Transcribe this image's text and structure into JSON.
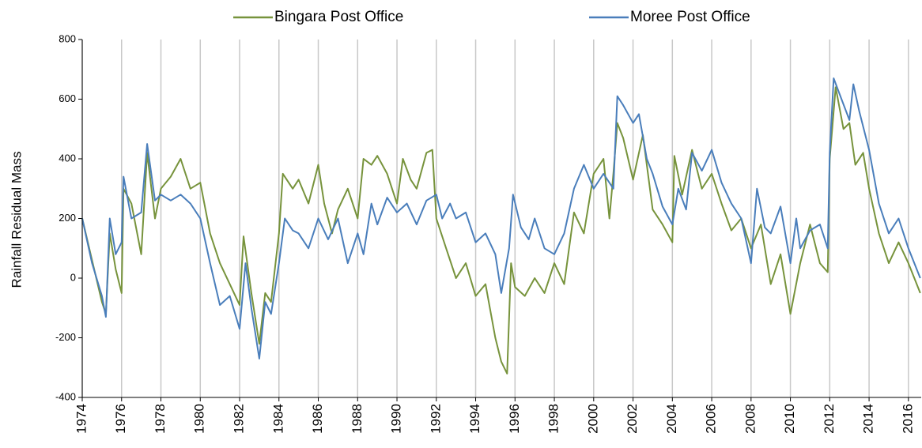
{
  "chart_data": {
    "type": "line",
    "y_label": "Rainfall Residual  Mass",
    "xlim": [
      1974,
      2016.65
    ],
    "xticks": [
      1974,
      1976,
      1978,
      1980,
      1982,
      1984,
      1986,
      1988,
      1990,
      1992,
      1994,
      1996,
      1998,
      2000,
      2002,
      2004,
      2006,
      2008,
      2010,
      2012,
      2014,
      2016
    ],
    "ylim": [
      -400,
      800
    ],
    "yticks": [
      -400,
      -200,
      0,
      200,
      400,
      600,
      800
    ],
    "grid": true,
    "legend": "top",
    "series": [
      {
        "name": "Bingara Post Office",
        "color": "#77933c",
        "x": [
          1974.0,
          1974.5,
          1975.0,
          1975.2,
          1975.4,
          1975.7,
          1976.0,
          1976.1,
          1976.5,
          1977.0,
          1977.3,
          1977.7,
          1978.0,
          1978.5,
          1979.0,
          1979.5,
          1980.0,
          1980.5,
          1981.0,
          1981.5,
          1982.0,
          1982.2,
          1982.6,
          1983.0,
          1983.3,
          1983.6,
          1984.0,
          1984.2,
          1984.7,
          1985.0,
          1985.5,
          1986.0,
          1986.3,
          1986.7,
          1987.0,
          1987.5,
          1988.0,
          1988.3,
          1988.7,
          1989.0,
          1989.5,
          1990.0,
          1990.3,
          1990.7,
          1991.0,
          1991.5,
          1991.8,
          1992.0,
          1992.5,
          1993.0,
          1993.5,
          1994.0,
          1994.5,
          1995.0,
          1995.3,
          1995.6,
          1995.8,
          1996.0,
          1996.5,
          1997.0,
          1997.5,
          1998.0,
          1998.5,
          1999.0,
          1999.5,
          2000.0,
          2000.5,
          2000.8,
          2001.0,
          2001.2,
          2001.5,
          2002.0,
          2002.5,
          2003.0,
          2003.5,
          2004.0,
          2004.1,
          2004.5,
          2005.0,
          2005.5,
          2006.0,
          2006.5,
          2007.0,
          2007.5,
          2008.0,
          2008.5,
          2009.0,
          2009.5,
          2010.0,
          2010.5,
          2011.0,
          2011.5,
          2011.9,
          2012.0,
          2012.3,
          2012.7,
          2013.0,
          2013.3,
          2013.7,
          2014.0,
          2014.5,
          2015.0,
          2015.5,
          2016.0,
          2016.6
        ],
        "values": [
          200,
          60,
          -80,
          -120,
          150,
          30,
          -50,
          300,
          250,
          80,
          420,
          200,
          300,
          340,
          400,
          300,
          320,
          150,
          50,
          -20,
          -90,
          140,
          -50,
          -220,
          -50,
          -80,
          150,
          350,
          300,
          330,
          250,
          380,
          250,
          150,
          230,
          300,
          200,
          400,
          380,
          410,
          350,
          250,
          400,
          330,
          300,
          420,
          430,
          200,
          100,
          0,
          50,
          -60,
          -20,
          -200,
          -280,
          -320,
          50,
          -30,
          -60,
          0,
          -50,
          50,
          -20,
          220,
          150,
          350,
          400,
          200,
          350,
          520,
          470,
          330,
          480,
          230,
          180,
          120,
          410,
          280,
          430,
          300,
          350,
          250,
          160,
          200,
          100,
          180,
          -20,
          80,
          -120,
          50,
          180,
          50,
          20,
          400,
          640,
          500,
          520,
          380,
          420,
          300,
          150,
          50,
          120,
          50,
          -50
        ]
      },
      {
        "name": "Moree Post Office",
        "color": "#4a7ebb",
        "x": [
          1974.0,
          1974.5,
          1975.0,
          1975.2,
          1975.4,
          1975.7,
          1976.0,
          1976.1,
          1976.5,
          1977.0,
          1977.3,
          1977.7,
          1978.0,
          1978.5,
          1979.0,
          1979.5,
          1980.0,
          1980.5,
          1981.0,
          1981.5,
          1982.0,
          1982.3,
          1982.6,
          1983.0,
          1983.3,
          1983.6,
          1984.0,
          1984.3,
          1984.7,
          1985.0,
          1985.5,
          1986.0,
          1986.5,
          1987.0,
          1987.5,
          1988.0,
          1988.3,
          1988.7,
          1989.0,
          1989.5,
          1990.0,
          1990.5,
          1991.0,
          1991.5,
          1992.0,
          1992.3,
          1992.7,
          1993.0,
          1993.5,
          1994.0,
          1994.5,
          1995.0,
          1995.3,
          1995.7,
          1995.9,
          1996.3,
          1996.7,
          1997.0,
          1997.5,
          1998.0,
          1998.5,
          1999.0,
          1999.5,
          2000.0,
          2000.5,
          2001.0,
          2001.2,
          2001.5,
          2002.0,
          2002.3,
          2002.7,
          2003.0,
          2003.5,
          2004.0,
          2004.3,
          2004.7,
          2005.0,
          2005.5,
          2006.0,
          2006.5,
          2007.0,
          2007.5,
          2008.0,
          2008.3,
          2008.7,
          2009.0,
          2009.5,
          2010.0,
          2010.3,
          2010.5,
          2011.0,
          2011.5,
          2011.9,
          2012.0,
          2012.2,
          2012.6,
          2013.0,
          2013.2,
          2013.5,
          2014.0,
          2014.5,
          2015.0,
          2015.5,
          2016.0,
          2016.6
        ],
        "values": [
          200,
          50,
          -60,
          -130,
          200,
          80,
          120,
          340,
          200,
          220,
          450,
          260,
          280,
          260,
          280,
          250,
          200,
          50,
          -90,
          -60,
          -170,
          50,
          -100,
          -270,
          -80,
          -120,
          50,
          200,
          160,
          150,
          100,
          200,
          130,
          200,
          50,
          150,
          80,
          250,
          180,
          270,
          220,
          250,
          180,
          260,
          280,
          200,
          250,
          200,
          220,
          120,
          150,
          80,
          -50,
          100,
          280,
          170,
          130,
          200,
          100,
          80,
          150,
          300,
          380,
          300,
          350,
          300,
          610,
          580,
          520,
          550,
          400,
          350,
          240,
          180,
          300,
          230,
          420,
          360,
          430,
          320,
          250,
          200,
          50,
          300,
          170,
          150,
          240,
          50,
          200,
          100,
          160,
          180,
          100,
          420,
          670,
          600,
          530,
          650,
          560,
          430,
          250,
          150,
          200,
          100,
          0
        ]
      }
    ]
  }
}
